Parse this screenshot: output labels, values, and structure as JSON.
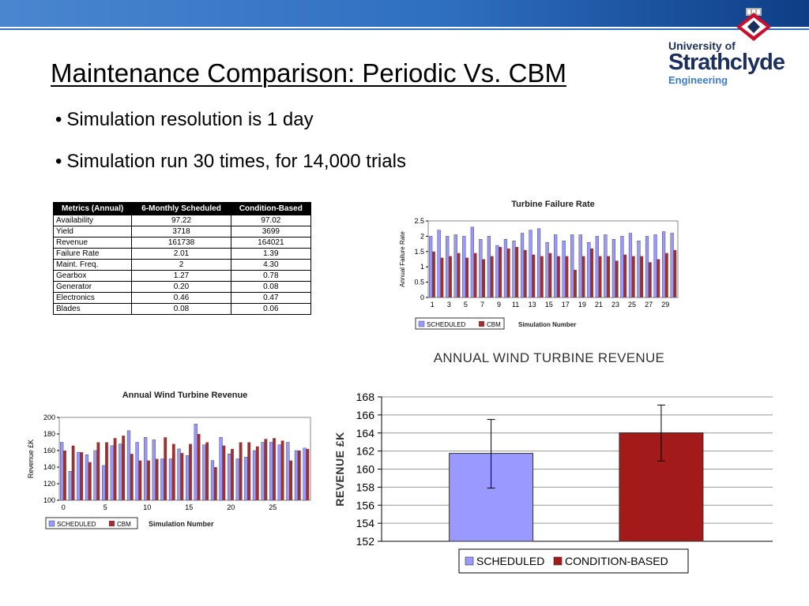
{
  "slide": {
    "title": "Maintenance Comparison: Periodic Vs. CBM",
    "bullets": [
      "Simulation resolution is 1 day",
      "Simulation run 30 times, for 14,000 trials"
    ],
    "bullet_char": "•"
  },
  "logo": {
    "line1": "University of",
    "line2": "Strathclyde",
    "line3": "Engineering"
  },
  "colors": {
    "scheduled": "#9999ff",
    "cbm": "#993333",
    "cbm_revenue": "#a31a1a",
    "header_blue": "#2f6fc0"
  },
  "metrics_table": {
    "headers": [
      "Metrics (Annual)",
      "6-Monthly Scheduled",
      "Condition-Based"
    ],
    "rows": [
      [
        "Availability",
        "97.22",
        "97.02"
      ],
      [
        "Yield",
        "3718",
        "3699"
      ],
      [
        "Revenue",
        "161738",
        "164021"
      ],
      [
        "Failure Rate",
        "2.01",
        "1.39"
      ],
      [
        "Maint. Freq.",
        "2",
        "4.30"
      ],
      [
        "Gearbox",
        "1.27",
        "0.78"
      ],
      [
        "Generator",
        "0.20",
        "0.08"
      ],
      [
        "Electronics",
        "0.46",
        "0.47"
      ],
      [
        "Blades",
        "0.08",
        "0.06"
      ]
    ]
  },
  "chart_data": [
    {
      "type": "bar",
      "title": "Turbine Failure Rate",
      "xlabel": "Simulation Number",
      "ylabel": "Annual Failure Rate",
      "ylim": [
        0,
        2.5
      ],
      "yticks": [
        "0",
        "0.5",
        "1",
        "1.5",
        "2",
        "2.5"
      ],
      "xticks": [
        "1",
        "3",
        "5",
        "7",
        "9",
        "11",
        "13",
        "15",
        "17",
        "19",
        "21",
        "23",
        "25",
        "27",
        "29"
      ],
      "legend": "bottom",
      "series": [
        {
          "name": "SCHEDULED",
          "values": [
            2.0,
            2.2,
            2.0,
            2.05,
            2.0,
            2.3,
            1.9,
            2.0,
            1.7,
            1.9,
            1.85,
            2.1,
            2.2,
            2.25,
            1.8,
            2.05,
            1.85,
            2.05,
            2.05,
            1.8,
            2.0,
            2.05,
            1.9,
            2.0,
            2.1,
            1.85,
            2.0,
            2.05,
            2.15,
            2.1
          ]
        },
        {
          "name": "CBM",
          "values": [
            1.5,
            1.3,
            1.35,
            1.45,
            1.3,
            1.45,
            1.25,
            1.35,
            1.65,
            1.6,
            1.65,
            1.55,
            1.4,
            1.35,
            1.45,
            1.35,
            1.35,
            0.9,
            1.35,
            1.6,
            1.35,
            1.35,
            1.2,
            1.4,
            1.35,
            1.35,
            1.15,
            1.25,
            1.45,
            1.55
          ]
        }
      ]
    },
    {
      "type": "bar",
      "title": "Annual Wind Turbine Revenue",
      "xlabel": "Simulation Number",
      "ylabel": "Revenue £K",
      "ylim": [
        100,
        200
      ],
      "yticks": [
        "100",
        "120",
        "140",
        "160",
        "180",
        "200"
      ],
      "xticks": [
        "0",
        "5",
        "10",
        "15",
        "20",
        "25"
      ],
      "legend": "bottom",
      "series": [
        {
          "name": "SCHEDULED",
          "values": [
            170,
            135,
            158,
            155,
            160,
            142,
            166,
            168,
            184,
            170,
            176,
            173,
            150,
            150,
            162,
            154,
            192,
            167,
            148,
            176,
            156,
            150,
            152,
            160,
            170,
            170,
            167,
            170,
            160,
            163
          ]
        },
        {
          "name": "CBM",
          "values": [
            160,
            166,
            158,
            146,
            170,
            170,
            175,
            178,
            156,
            148,
            148,
            150,
            176,
            168,
            157,
            168,
            180,
            170,
            140,
            166,
            162,
            170,
            170,
            165,
            174,
            175,
            172,
            148,
            160,
            162
          ]
        }
      ]
    },
    {
      "type": "bar",
      "title": "ANNUAL WIND TURBINE REVENUE",
      "xlabel": "",
      "ylabel": "REVENUE £K",
      "ylim": [
        152,
        168
      ],
      "yticks": [
        "152",
        "154",
        "156",
        "158",
        "160",
        "162",
        "164",
        "166",
        "168"
      ],
      "grid": true,
      "legend": "bottom",
      "categories": [
        "SCHEDULED",
        "CONDITION-BASED"
      ],
      "values": [
        161.74,
        164.02
      ],
      "error_low": [
        157.9,
        160.9
      ],
      "error_high": [
        165.5,
        167.1
      ]
    }
  ]
}
